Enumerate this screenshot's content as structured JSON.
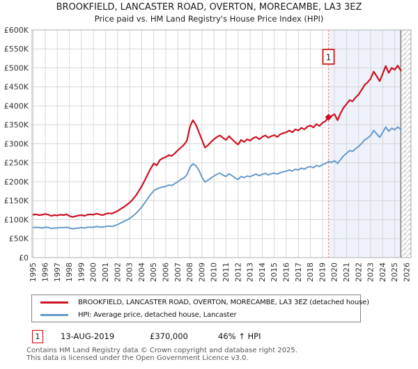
{
  "page": {
    "title_line1": "BROOKFIELD, LANCASTER ROAD, OVERTON, MORECAMBE, LA3 3EZ",
    "title_line2": "Price paid vs. HM Land Registry's House Price Index (HPI)"
  },
  "chart_data": {
    "type": "line",
    "title": "BROOKFIELD, LANCASTER ROAD, OVERTON, MORECAMBE, LA3 3EZ",
    "subtitle": "Price paid vs. HM Land Registry's House Price Index (HPI)",
    "legend_position": "bottom",
    "grid": true,
    "x_axis": {
      "range": [
        1994.9,
        2026.35
      ],
      "tick_years": [
        1995,
        1996,
        1997,
        1998,
        1999,
        2000,
        2001,
        2002,
        2003,
        2004,
        2005,
        2006,
        2007,
        2008,
        2009,
        2010,
        2011,
        2012,
        2013,
        2014,
        2015,
        2016,
        2017,
        2018,
        2019,
        2020,
        2021,
        2022,
        2023,
        2024,
        2025,
        2026
      ]
    },
    "y_axis": {
      "unit": "GBP thousands",
      "range_k": [
        0,
        600
      ],
      "tick_values_k": [
        0,
        50,
        100,
        150,
        200,
        250,
        300,
        350,
        400,
        450,
        500,
        550,
        600
      ],
      "tick_labels": [
        "£0",
        "£50K",
        "£100K",
        "£150K",
        "£200K",
        "£250K",
        "£300K",
        "£350K",
        "£400K",
        "£450K",
        "£500K",
        "£550K",
        "£600K"
      ]
    },
    "series": [
      {
        "name": "BROOKFIELD, LANCASTER ROAD, OVERTON, MORECAMBE, LA3 3EZ (detached house)",
        "color": "#cc1122",
        "start_year": 1995,
        "step_years": 0.25,
        "values_k": [
          113,
          114,
          112,
          113,
          115,
          113,
          110,
          112,
          111,
          113,
          112,
          114,
          110,
          107,
          109,
          111,
          112,
          110,
          113,
          114,
          113,
          116,
          114,
          112,
          115,
          117,
          116,
          119,
          123,
          128,
          133,
          139,
          145,
          153,
          163,
          175,
          188,
          203,
          220,
          235,
          248,
          243,
          257,
          262,
          265,
          270,
          268,
          275,
          283,
          290,
          297,
          308,
          345,
          362,
          350,
          330,
          310,
          290,
          296,
          305,
          312,
          318,
          322,
          315,
          310,
          320,
          312,
          304,
          298,
          310,
          305,
          312,
          308,
          315,
          318,
          312,
          318,
          322,
          316,
          320,
          323,
          318,
          325,
          328,
          330,
          335,
          330,
          338,
          335,
          342,
          338,
          345,
          348,
          343,
          352,
          347,
          355,
          360,
          370,
          373,
          378,
          362,
          380,
          395,
          405,
          415,
          412,
          422,
          430,
          442,
          455,
          462,
          472,
          490,
          478,
          465,
          485,
          505,
          487,
          500,
          495,
          506,
          493
        ]
      },
      {
        "name": "HPI: Average price, detached house, Lancaster",
        "color": "#6699cc",
        "start_year": 1995,
        "step_years": 0.25,
        "values_k": [
          79,
          80,
          79,
          78,
          80,
          79,
          77,
          78,
          78,
          79,
          79,
          80,
          78,
          76,
          77,
          78,
          79,
          78,
          80,
          80,
          80,
          82,
          81,
          80,
          82,
          83,
          82,
          84,
          87,
          91,
          95,
          99,
          103,
          109,
          116,
          124,
          133,
          144,
          156,
          167,
          176,
          181,
          184,
          186,
          188,
          191,
          190,
          195,
          200,
          206,
          210,
          218,
          238,
          247,
          242,
          230,
          212,
          199,
          204,
          210,
          215,
          220,
          223,
          217,
          214,
          221,
          216,
          210,
          206,
          214,
          211,
          215,
          213,
          217,
          220,
          216,
          219,
          222,
          218,
          221,
          223,
          220,
          224,
          226,
          228,
          231,
          228,
          233,
          231,
          236,
          233,
          238,
          240,
          237,
          243,
          240,
          245,
          248,
          253,
          251,
          255,
          248,
          258,
          268,
          275,
          282,
          280,
          287,
          293,
          301,
          310,
          315,
          322,
          335,
          326,
          317,
          330,
          344,
          333,
          341,
          337,
          344,
          338
        ]
      }
    ],
    "sale_marker": {
      "label": "1",
      "year": 2019.5,
      "value_k": 370
    },
    "shaded_region_from_year": 2019.5,
    "hatch_region_from_year": 2025.5,
    "colors": {
      "dashed_line": "#ef8080",
      "shaded_region": "#eef2fa",
      "hatch_stroke": "#c9c9c9",
      "grid": "#d6d6d6",
      "plot_border": "#adadad",
      "annotation_border": "#cc0000"
    }
  },
  "transactions": [
    {
      "number": "1",
      "date": "13-AUG-2019",
      "price": "£370,000",
      "vs_hpi": "46% ↑ HPI"
    }
  ],
  "footer": {
    "line1": "Contains HM Land Registry data © Crown copyright and database right 2025.",
    "line2": "This data is licensed under the Open Government Licence v3.0."
  }
}
